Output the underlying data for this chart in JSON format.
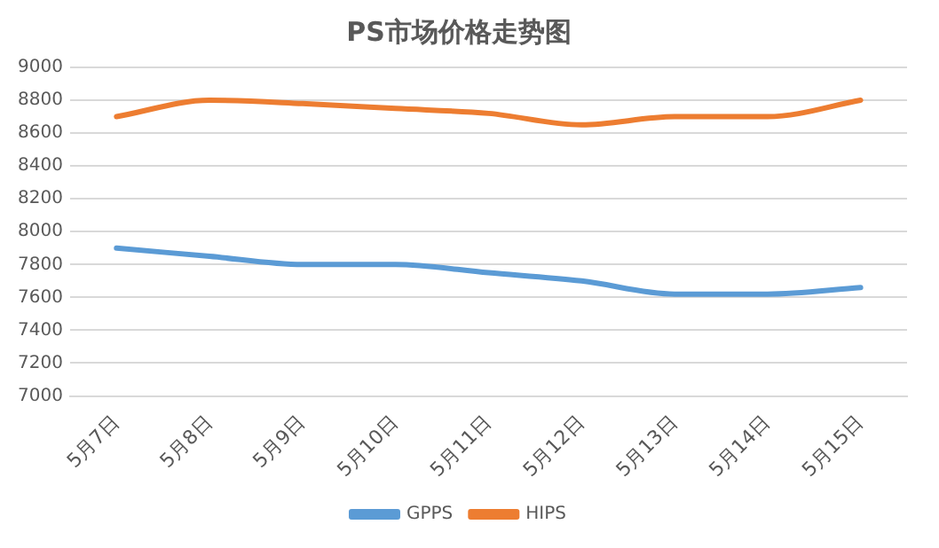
{
  "chart_data": {
    "type": "line",
    "title": "PS市场价格走势图",
    "categories": [
      "5月7日",
      "5月8日",
      "5月9日",
      "5月10日",
      "5月11日",
      "5月12日",
      "5月13日",
      "5月14日",
      "5月15日"
    ],
    "series": [
      {
        "name": "GPPS",
        "color": "#5b9bd5",
        "values": [
          7900,
          7850,
          7800,
          7800,
          7750,
          7700,
          7620,
          7620,
          7660
        ]
      },
      {
        "name": "HIPS",
        "color": "#ed7d31",
        "values": [
          8700,
          8800,
          8780,
          8750,
          8720,
          8650,
          8700,
          8700,
          8800
        ]
      }
    ],
    "ylim": [
      7000,
      9000
    ],
    "yticks": [
      7000,
      7200,
      7400,
      7600,
      7800,
      8000,
      8200,
      8400,
      8600,
      8800,
      9000
    ],
    "grid": "y",
    "legend": "bottom",
    "marker": "none",
    "line_style": "solid"
  }
}
